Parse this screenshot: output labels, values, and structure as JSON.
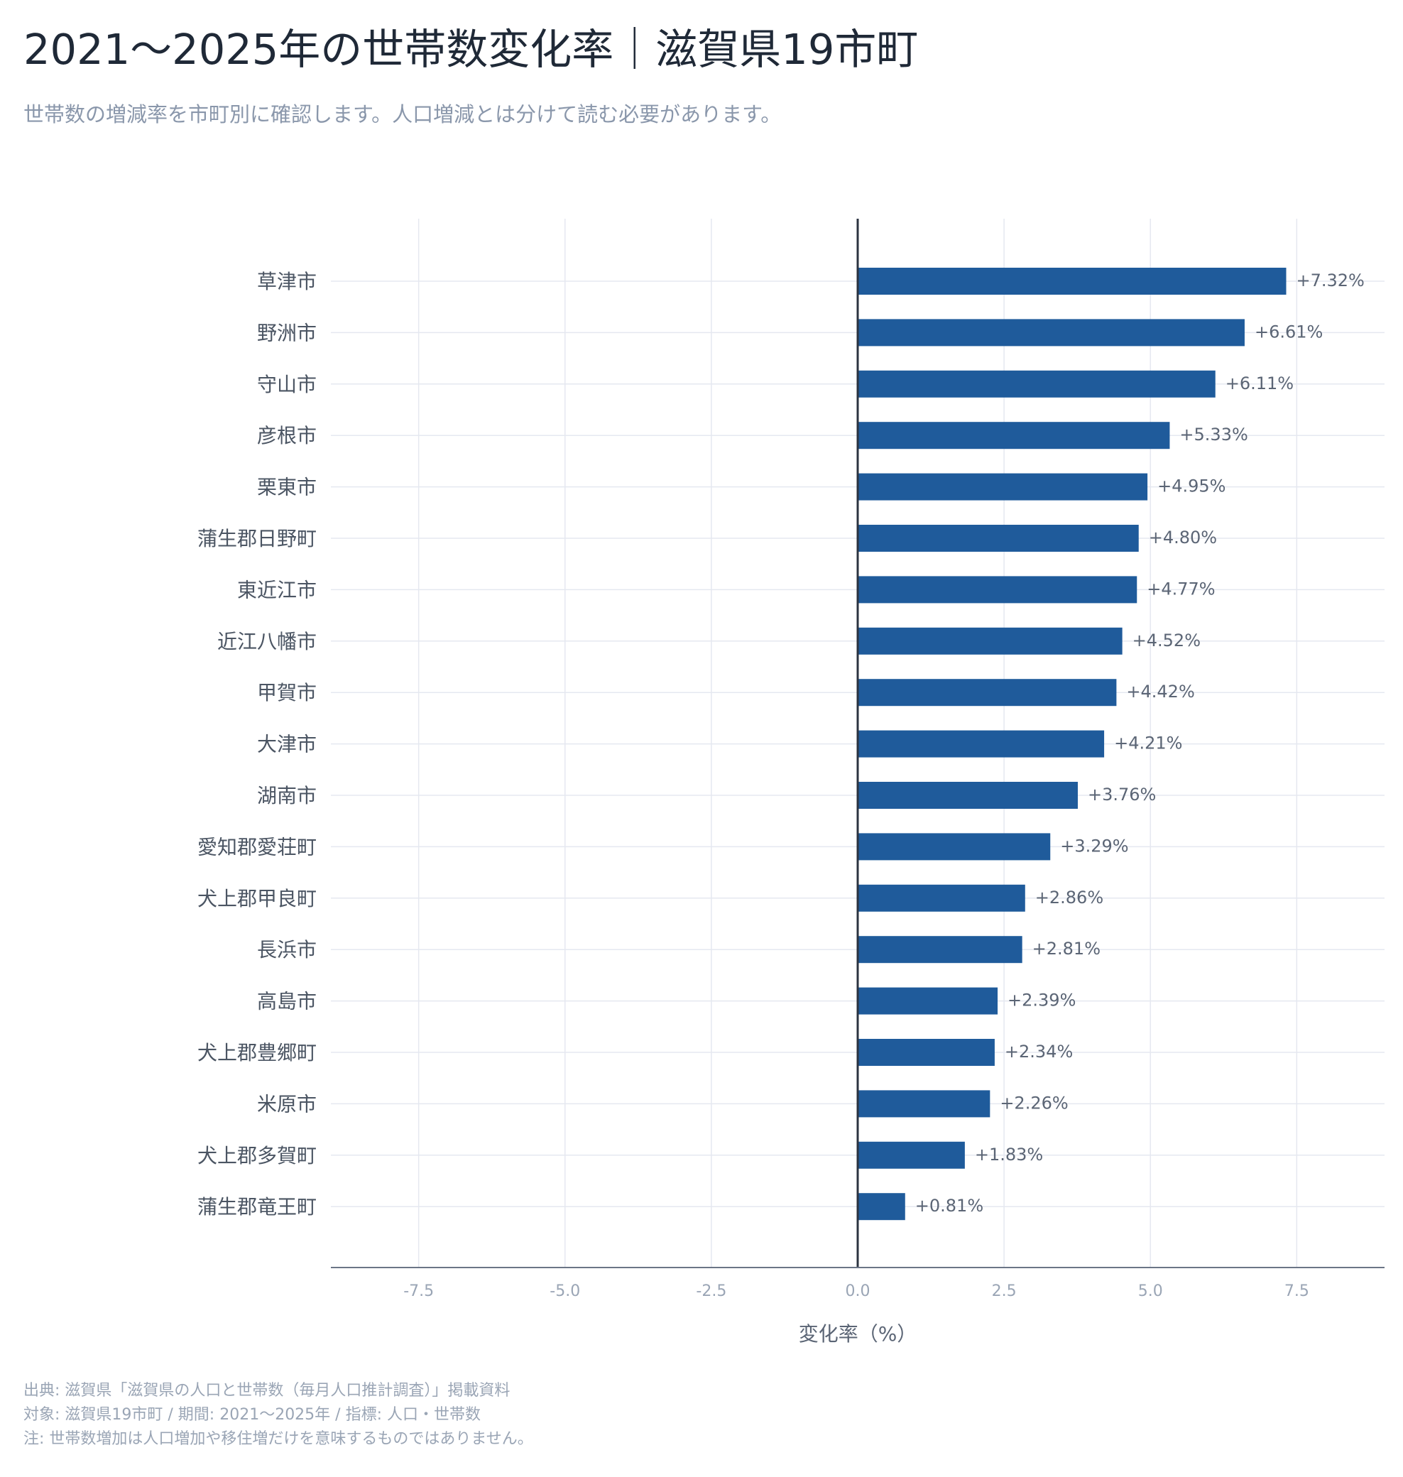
{
  "title": "2021〜2025年の世帯数変化率｜滋賀県19市町",
  "subtitle": "世帯数の増減率を市町別に確認します。人口増減とは分けて読む必要があります。",
  "footnotes": {
    "source": "出典: 滋賀県「滋賀県の人口と世帯数（毎月人口推計調査）」掲載資料",
    "scope": "対象: 滋賀県19市町 / 期間: 2021〜2025年 / 指標: 人口・世帯数",
    "note": "注: 世帯数増加は人口増加や移住増だけを意味するものではありません。"
  },
  "colors": {
    "bar": "#1f5b9b",
    "grid": "#e5e8f0",
    "zero_line": "#2b3340",
    "axis_line": "#6b7586",
    "category_label": "#4b5563",
    "tick_label": "#9aa5b5",
    "value_label": "#5b6575",
    "axis_title": "#5b6575"
  },
  "chart_data": {
    "type": "bar",
    "orientation": "horizontal",
    "xlabel": "変化率（%）",
    "xlim": [
      -9.0,
      9.0
    ],
    "xticks": [
      -7.5,
      -5.0,
      -2.5,
      0.0,
      2.5,
      5.0,
      7.5
    ],
    "xtick_labels": [
      "-7.5",
      "-5.0",
      "-2.5",
      "0.0",
      "2.5",
      "5.0",
      "7.5"
    ],
    "grid": true,
    "categories": [
      "草津市",
      "野洲市",
      "守山市",
      "彦根市",
      "栗東市",
      "蒲生郡日野町",
      "東近江市",
      "近江八幡市",
      "甲賀市",
      "大津市",
      "湖南市",
      "愛知郡愛荘町",
      "犬上郡甲良町",
      "長浜市",
      "高島市",
      "犬上郡豊郷町",
      "米原市",
      "犬上郡多賀町",
      "蒲生郡竜王町"
    ],
    "values": [
      7.32,
      6.61,
      6.11,
      5.33,
      4.95,
      4.8,
      4.77,
      4.52,
      4.42,
      4.21,
      3.76,
      3.29,
      2.86,
      2.81,
      2.39,
      2.34,
      2.26,
      1.83,
      0.81
    ],
    "value_labels": [
      "+7.32%",
      "+6.61%",
      "+6.11%",
      "+5.33%",
      "+4.95%",
      "+4.80%",
      "+4.77%",
      "+4.52%",
      "+4.42%",
      "+4.21%",
      "+3.76%",
      "+3.29%",
      "+2.86%",
      "+2.81%",
      "+2.39%",
      "+2.34%",
      "+2.26%",
      "+1.83%",
      "+0.81%"
    ]
  }
}
